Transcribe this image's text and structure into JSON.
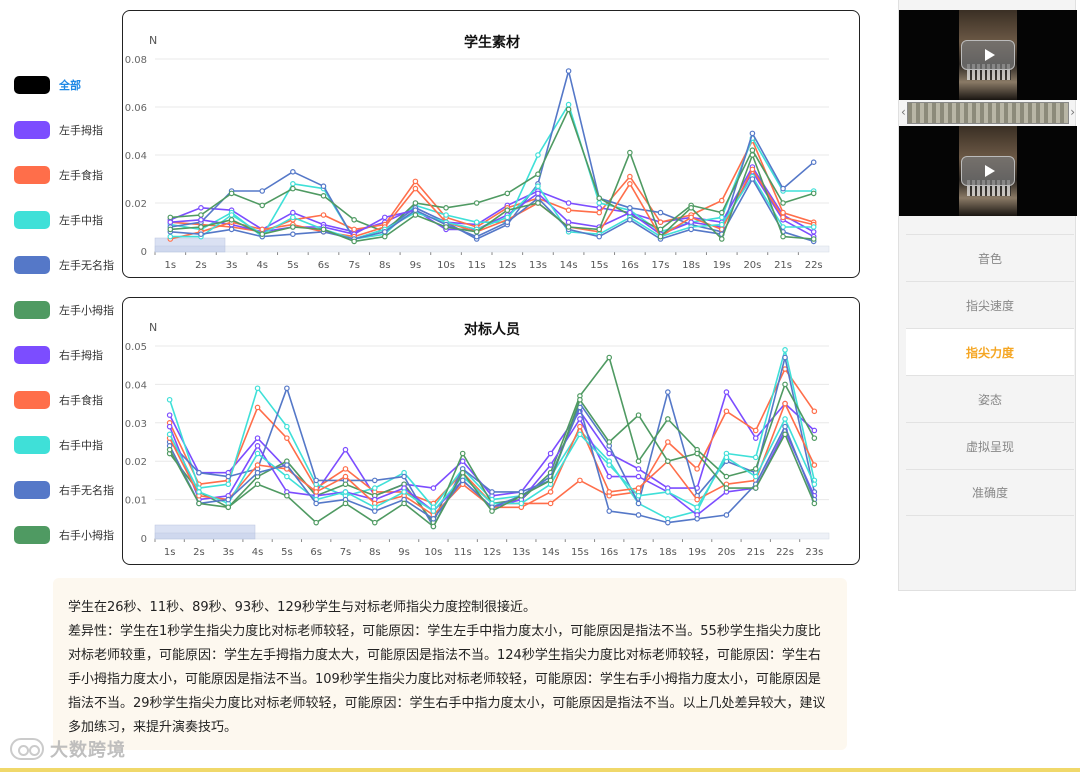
{
  "legend": {
    "items": [
      {
        "label": "全部",
        "color": "#000000",
        "active": true
      },
      {
        "label": "左手拇指",
        "color": "#7c4dff"
      },
      {
        "label": "左手食指",
        "color": "#ff6e4a"
      },
      {
        "label": "左手中指",
        "color": "#3fe0d8"
      },
      {
        "label": "左手无名指",
        "color": "#5578c8"
      },
      {
        "label": "左手小拇指",
        "color": "#4f9a62"
      },
      {
        "label": "右手拇指",
        "color": "#7c4dff"
      },
      {
        "label": "右手食指",
        "color": "#ff6e4a"
      },
      {
        "label": "右手中指",
        "color": "#3fe0d8"
      },
      {
        "label": "右手无名指",
        "color": "#5578c8"
      },
      {
        "label": "右手小拇指",
        "color": "#4f9a62"
      }
    ]
  },
  "chart_data": [
    {
      "type": "line",
      "title": "学生素材",
      "ylabel": "N",
      "ylim": [
        0,
        0.08
      ],
      "yticks": [
        "0",
        "0.02",
        "0.04",
        "0.06",
        "0.08"
      ],
      "grid": true,
      "x": [
        "1s",
        "2s",
        "3s",
        "4s",
        "5s",
        "6s",
        "7s",
        "8s",
        "9s",
        "10s",
        "11s",
        "12s",
        "13s",
        "14s",
        "15s",
        "16s",
        "17s",
        "18s",
        "19s",
        "20s",
        "21s",
        "22s"
      ],
      "series": [
        {
          "color": "#7c4dff",
          "values": [
            0.013,
            0.018,
            0.017,
            0.009,
            0.016,
            0.011,
            0.008,
            0.012,
            0.018,
            0.012,
            0.011,
            0.019,
            0.025,
            0.02,
            0.018,
            0.016,
            0.012,
            0.014,
            0.012,
            0.035,
            0.015,
            0.008
          ]
        },
        {
          "color": "#ff6e4a",
          "values": [
            0.012,
            0.011,
            0.01,
            0.008,
            0.013,
            0.015,
            0.009,
            0.011,
            0.029,
            0.014,
            0.01,
            0.018,
            0.022,
            0.017,
            0.016,
            0.031,
            0.012,
            0.015,
            0.021,
            0.046,
            0.016,
            0.012
          ]
        },
        {
          "color": "#3fe0d8",
          "values": [
            0.011,
            0.009,
            0.016,
            0.006,
            0.028,
            0.026,
            0.005,
            0.007,
            0.019,
            0.015,
            0.012,
            0.012,
            0.04,
            0.061,
            0.02,
            0.017,
            0.008,
            0.012,
            0.014,
            0.047,
            0.025,
            0.025
          ]
        },
        {
          "color": "#5578c8",
          "values": [
            0.01,
            0.012,
            0.025,
            0.025,
            0.033,
            0.027,
            0.005,
            0.009,
            0.018,
            0.012,
            0.005,
            0.011,
            0.028,
            0.075,
            0.022,
            0.018,
            0.016,
            0.011,
            0.008,
            0.049,
            0.026,
            0.037
          ]
        },
        {
          "color": "#4f9a62",
          "values": [
            0.014,
            0.015,
            0.024,
            0.019,
            0.026,
            0.023,
            0.013,
            0.008,
            0.02,
            0.018,
            0.02,
            0.024,
            0.032,
            0.059,
            0.022,
            0.015,
            0.009,
            0.019,
            0.016,
            0.042,
            0.02,
            0.024
          ]
        },
        {
          "color": "#7c4dff",
          "values": [
            0.012,
            0.013,
            0.011,
            0.008,
            0.01,
            0.01,
            0.007,
            0.014,
            0.017,
            0.009,
            0.009,
            0.015,
            0.024,
            0.012,
            0.01,
            0.016,
            0.007,
            0.012,
            0.01,
            0.033,
            0.013,
            0.006
          ]
        },
        {
          "color": "#ff6e4a",
          "values": [
            0.005,
            0.008,
            0.012,
            0.009,
            0.011,
            0.008,
            0.006,
            0.01,
            0.026,
            0.012,
            0.008,
            0.013,
            0.02,
            0.01,
            0.008,
            0.028,
            0.006,
            0.014,
            0.009,
            0.034,
            0.014,
            0.011
          ]
        },
        {
          "color": "#3fe0d8",
          "values": [
            0.006,
            0.006,
            0.015,
            0.007,
            0.014,
            0.009,
            0.005,
            0.009,
            0.016,
            0.012,
            0.009,
            0.014,
            0.027,
            0.008,
            0.007,
            0.014,
            0.006,
            0.01,
            0.011,
            0.031,
            0.01,
            0.01
          ]
        },
        {
          "color": "#5578c8",
          "values": [
            0.008,
            0.007,
            0.009,
            0.006,
            0.007,
            0.008,
            0.005,
            0.008,
            0.017,
            0.011,
            0.006,
            0.012,
            0.022,
            0.009,
            0.006,
            0.013,
            0.005,
            0.009,
            0.007,
            0.03,
            0.008,
            0.004
          ]
        },
        {
          "color": "#4f9a62",
          "values": [
            0.009,
            0.01,
            0.013,
            0.007,
            0.01,
            0.009,
            0.004,
            0.006,
            0.015,
            0.01,
            0.008,
            0.017,
            0.02,
            0.01,
            0.009,
            0.041,
            0.006,
            0.018,
            0.005,
            0.04,
            0.006,
            0.005
          ]
        }
      ]
    },
    {
      "type": "line",
      "title": "对标人员",
      "ylabel": "N",
      "ylim": [
        0,
        0.05
      ],
      "yticks": [
        "0",
        "0.01",
        "0.02",
        "0.03",
        "0.04",
        "0.05"
      ],
      "grid": true,
      "x": [
        "1s",
        "2s",
        "3s",
        "4s",
        "5s",
        "6s",
        "7s",
        "8s",
        "9s",
        "10s",
        "11s",
        "12s",
        "13s",
        "14s",
        "15s",
        "16s",
        "17s",
        "18s",
        "19s",
        "20s",
        "21s",
        "22s",
        "23s"
      ],
      "series": [
        {
          "color": "#7c4dff",
          "values": [
            0.032,
            0.017,
            0.017,
            0.026,
            0.018,
            0.012,
            0.023,
            0.011,
            0.014,
            0.013,
            0.02,
            0.011,
            0.012,
            0.022,
            0.033,
            0.022,
            0.018,
            0.013,
            0.013,
            0.038,
            0.026,
            0.035,
            0.028
          ]
        },
        {
          "color": "#ff6e4a",
          "values": [
            0.03,
            0.014,
            0.015,
            0.034,
            0.026,
            0.013,
            0.018,
            0.012,
            0.012,
            0.009,
            0.017,
            0.009,
            0.009,
            0.009,
            0.015,
            0.011,
            0.012,
            0.025,
            0.018,
            0.033,
            0.028,
            0.044,
            0.033
          ]
        },
        {
          "color": "#3fe0d8",
          "values": [
            0.036,
            0.013,
            0.014,
            0.039,
            0.029,
            0.014,
            0.011,
            0.013,
            0.017,
            0.008,
            0.018,
            0.01,
            0.011,
            0.016,
            0.028,
            0.02,
            0.009,
            0.005,
            0.007,
            0.022,
            0.021,
            0.049,
            0.015
          ]
        },
        {
          "color": "#5578c8",
          "values": [
            0.025,
            0.017,
            0.016,
            0.018,
            0.039,
            0.015,
            0.015,
            0.015,
            0.016,
            0.003,
            0.018,
            0.012,
            0.012,
            0.015,
            0.035,
            0.024,
            0.009,
            0.038,
            0.011,
            0.02,
            0.017,
            0.047,
            0.012
          ]
        },
        {
          "color": "#4f9a62",
          "values": [
            0.022,
            0.012,
            0.008,
            0.016,
            0.02,
            0.011,
            0.014,
            0.011,
            0.014,
            0.004,
            0.022,
            0.009,
            0.01,
            0.017,
            0.037,
            0.047,
            0.02,
            0.031,
            0.023,
            0.016,
            0.018,
            0.04,
            0.026
          ]
        },
        {
          "color": "#7c4dff",
          "values": [
            0.029,
            0.01,
            0.011,
            0.024,
            0.012,
            0.011,
            0.012,
            0.01,
            0.013,
            0.007,
            0.015,
            0.008,
            0.01,
            0.019,
            0.031,
            0.016,
            0.016,
            0.012,
            0.006,
            0.012,
            0.013,
            0.028,
            0.011
          ]
        },
        {
          "color": "#ff6e4a",
          "values": [
            0.026,
            0.011,
            0.01,
            0.019,
            0.018,
            0.012,
            0.016,
            0.009,
            0.011,
            0.006,
            0.014,
            0.008,
            0.008,
            0.012,
            0.029,
            0.012,
            0.013,
            0.02,
            0.01,
            0.014,
            0.015,
            0.035,
            0.019
          ]
        },
        {
          "color": "#3fe0d8",
          "values": [
            0.027,
            0.012,
            0.009,
            0.022,
            0.016,
            0.01,
            0.012,
            0.008,
            0.012,
            0.007,
            0.016,
            0.009,
            0.009,
            0.014,
            0.027,
            0.019,
            0.011,
            0.012,
            0.008,
            0.021,
            0.016,
            0.031,
            0.014
          ]
        },
        {
          "color": "#5578c8",
          "values": [
            0.024,
            0.009,
            0.01,
            0.017,
            0.019,
            0.009,
            0.01,
            0.007,
            0.01,
            0.005,
            0.015,
            0.008,
            0.011,
            0.016,
            0.034,
            0.007,
            0.006,
            0.004,
            0.005,
            0.006,
            0.014,
            0.029,
            0.01
          ]
        },
        {
          "color": "#4f9a62",
          "values": [
            0.023,
            0.009,
            0.008,
            0.014,
            0.011,
            0.004,
            0.009,
            0.004,
            0.009,
            0.003,
            0.017,
            0.007,
            0.011,
            0.015,
            0.036,
            0.025,
            0.032,
            0.02,
            0.022,
            0.013,
            0.013,
            0.027,
            0.009
          ]
        }
      ]
    }
  ],
  "summary": {
    "line1": "学生在26秒、11秒、89秒、93秒、129秒学生与对标老师指尖力度控制很接近。",
    "line2": "差异性：学生在1秒学生指尖力度比对标老师较轻，可能原因：学生左手中指力度太小，可能原因是指法不当。55秒学生指尖力度比对标老师较重，可能原因：学生左手拇指力度太大，可能原因是指法不当。124秒学生指尖力度比对标老师较轻，可能原因：学生右手小拇指力度太小，可能原因是指法不当。109秒学生指尖力度比对标老师较轻，可能原因：学生右手小拇指力度太小，可能原因是指法不当。29秒学生指尖力度比对标老师较轻，可能原因：学生右手中指力度太小，可能原因是指法不当。以上几处差异较大，建议多加练习，来提升演奏技巧。"
  },
  "sidebar": {
    "menu": [
      {
        "label": "音色"
      },
      {
        "label": "指尖速度"
      },
      {
        "label": "指尖力度",
        "active": true
      },
      {
        "label": "姿态"
      },
      {
        "label": "虚拟呈现"
      },
      {
        "label": "准确度"
      }
    ]
  },
  "watermark": {
    "text": "大数跨境"
  }
}
